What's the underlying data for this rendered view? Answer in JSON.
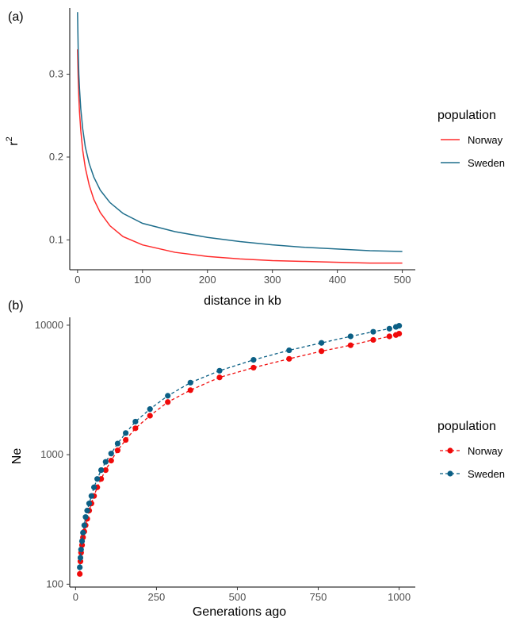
{
  "chart_data": [
    {
      "panel_label": "(a)",
      "type": "line",
      "xlabel": "distance in kb",
      "ylabel_base": "r",
      "ylabel_sup": "2",
      "xlim": [
        -12,
        520
      ],
      "ylim": [
        0.064,
        0.38
      ],
      "x_ticks": [
        0,
        100,
        200,
        300,
        400,
        500
      ],
      "y_ticks": [
        0.1,
        0.2,
        0.3
      ],
      "y_tick_labels": [
        "0.1",
        "0.2",
        "0.3"
      ],
      "legend_title": "population",
      "series": [
        {
          "name": "Norway",
          "color": "#ff2b2b",
          "x": [
            0,
            1,
            2,
            3,
            5,
            8,
            12,
            18,
            25,
            35,
            50,
            70,
            100,
            150,
            200,
            250,
            300,
            350,
            400,
            450,
            500
          ],
          "y": [
            0.33,
            0.295,
            0.272,
            0.255,
            0.232,
            0.208,
            0.187,
            0.166,
            0.149,
            0.133,
            0.117,
            0.104,
            0.094,
            0.085,
            0.08,
            0.077,
            0.075,
            0.074,
            0.073,
            0.072,
            0.072
          ]
        },
        {
          "name": "Sweden",
          "color": "#1f6e8c",
          "x": [
            0,
            1,
            2,
            3,
            5,
            8,
            12,
            18,
            25,
            35,
            50,
            70,
            100,
            150,
            200,
            250,
            300,
            350,
            400,
            450,
            500
          ],
          "y": [
            0.375,
            0.33,
            0.3,
            0.283,
            0.258,
            0.234,
            0.212,
            0.192,
            0.176,
            0.16,
            0.145,
            0.132,
            0.12,
            0.11,
            0.103,
            0.098,
            0.094,
            0.091,
            0.089,
            0.087,
            0.086
          ]
        }
      ]
    },
    {
      "panel_label": "(b)",
      "type": "scatter",
      "xlabel": "Generations ago",
      "ylabel": "Ne",
      "log_y": true,
      "xlim": [
        -18,
        1050
      ],
      "ylim": [
        95,
        11500
      ],
      "x_ticks": [
        0,
        250,
        500,
        750,
        1000
      ],
      "y_ticks": [
        100,
        1000,
        10000
      ],
      "y_tick_labels": [
        "100",
        "1000",
        "10000"
      ],
      "legend_title": "population",
      "series": [
        {
          "name": "Norway",
          "color": "#f00a0a",
          "line_style": "dashed",
          "x": [
            13,
            15,
            17,
            20,
            23,
            27,
            31,
            36,
            42,
            49,
            57,
            67,
            79,
            93,
            110,
            130,
            155,
            185,
            230,
            285,
            355,
            445,
            550,
            660,
            760,
            850,
            920,
            970,
            990,
            1000
          ],
          "y": [
            120,
            150,
            175,
            200,
            230,
            255,
            285,
            320,
            370,
            420,
            480,
            560,
            650,
            760,
            900,
            1080,
            1300,
            1600,
            2000,
            2550,
            3150,
            3950,
            4700,
            5500,
            6300,
            7000,
            7700,
            8200,
            8400,
            8600
          ]
        },
        {
          "name": "Sweden",
          "color": "#0b5f85",
          "line_style": "dashed",
          "x": [
            13,
            15,
            17,
            20,
            23,
            27,
            31,
            36,
            42,
            49,
            57,
            67,
            79,
            93,
            110,
            130,
            155,
            185,
            230,
            285,
            355,
            445,
            550,
            660,
            760,
            850,
            920,
            970,
            990,
            1000
          ],
          "y": [
            135,
            160,
            185,
            215,
            250,
            285,
            330,
            370,
            420,
            480,
            560,
            650,
            760,
            880,
            1020,
            1220,
            1470,
            1800,
            2250,
            2850,
            3600,
            4450,
            5400,
            6400,
            7300,
            8200,
            8900,
            9400,
            9700,
            9900
          ]
        }
      ]
    }
  ]
}
